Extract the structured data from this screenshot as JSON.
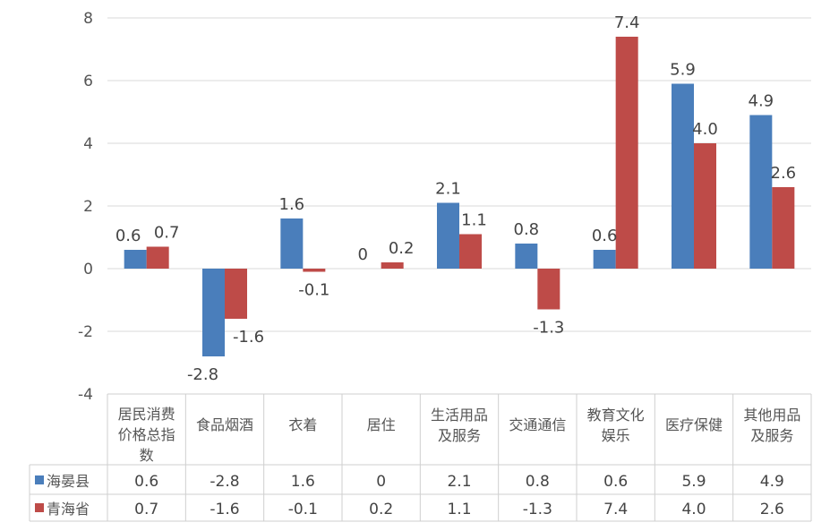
{
  "chart_data": {
    "type": "bar",
    "categories": [
      [
        "居民消费",
        "价格总指",
        "数"
      ],
      [
        "食品烟酒"
      ],
      [
        "衣着"
      ],
      [
        "居住"
      ],
      [
        "生活用品",
        "及服务"
      ],
      [
        "交通通信"
      ],
      [
        "教育文化",
        "娱乐"
      ],
      [
        "医疗保健"
      ],
      [
        "其他用品",
        "及服务"
      ]
    ],
    "series": [
      {
        "name": "海晏县",
        "color": "#4a7ebb",
        "values": [
          0.6,
          -2.8,
          1.6,
          0,
          2.1,
          0.8,
          0.6,
          5.9,
          4.9
        ],
        "labels": [
          "0.6",
          "-2.8",
          "1.6",
          "0",
          "2.1",
          "0.8",
          "0.6",
          "5.9",
          "4.9"
        ]
      },
      {
        "name": "青海省",
        "color": "#be4b48",
        "values": [
          0.7,
          -1.6,
          -0.1,
          0.2,
          1.1,
          -1.3,
          7.4,
          4.0,
          2.6
        ],
        "labels": [
          "0.7",
          "-1.6",
          "-0.1",
          "0.2",
          "1.1",
          "-1.3",
          "7.4",
          "4.0",
          "2.6"
        ]
      }
    ],
    "ylim": [
      -4,
      8
    ],
    "yticks": [
      8,
      6,
      4,
      2,
      0,
      -2,
      -4
    ],
    "grid": true,
    "legend": "data-table"
  }
}
